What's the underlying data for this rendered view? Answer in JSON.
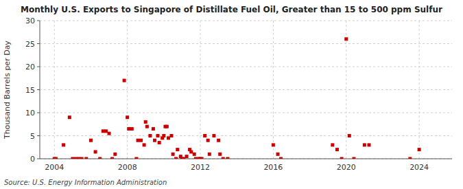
{
  "chart_data": {
    "type": "scatter",
    "title": "Monthly U.S. Exports to Singapore of Distillate Fuel Oil, Greater than 15 to 500 ppm Sulfur",
    "ylabel": "Thousand Barrels per Day",
    "source": "Source: U.S. Energy Information Administration",
    "color": "#cc0000",
    "marker": "square",
    "grid": true,
    "xlim": [
      2003.2,
      2025.8
    ],
    "xticks": [
      2004,
      2008,
      2012,
      2016,
      2020,
      2024
    ],
    "ylim": [
      0,
      30
    ],
    "yticks": [
      0,
      5,
      10,
      15,
      20,
      25,
      30
    ],
    "x": [
      2004.0,
      2004.08,
      2004.5,
      2004.83,
      2005.0,
      2005.17,
      2005.33,
      2005.5,
      2005.75,
      2006.0,
      2006.25,
      2006.5,
      2006.67,
      2006.83,
      2007.0,
      2007.17,
      2007.33,
      2007.83,
      2008.0,
      2008.08,
      2008.25,
      2008.5,
      2008.58,
      2008.75,
      2008.92,
      2009.0,
      2009.08,
      2009.25,
      2009.42,
      2009.5,
      2009.67,
      2009.75,
      2009.92,
      2010.0,
      2010.08,
      2010.17,
      2010.25,
      2010.42,
      2010.5,
      2010.67,
      2010.75,
      2010.92,
      2011.0,
      2011.08,
      2011.25,
      2011.42,
      2011.5,
      2011.67,
      2011.75,
      2011.92,
      2012.0,
      2012.08,
      2012.25,
      2012.42,
      2012.5,
      2012.75,
      2013.0,
      2013.08,
      2013.25,
      2013.5,
      2016.0,
      2016.25,
      2016.42,
      2019.25,
      2019.5,
      2019.75,
      2020.0,
      2020.17,
      2020.42,
      2021.0,
      2021.25,
      2023.5,
      2024.0
    ],
    "values": [
      0.0,
      0.0,
      3.0,
      9.0,
      0.0,
      0.0,
      0.0,
      0.0,
      0.0,
      4.0,
      1.5,
      0.0,
      6.0,
      6.0,
      5.5,
      0.0,
      1.0,
      17.0,
      9.0,
      6.5,
      6.5,
      0.0,
      4.0,
      4.0,
      3.0,
      8.0,
      7.0,
      5.0,
      6.5,
      4.0,
      5.0,
      3.5,
      4.5,
      5.0,
      7.0,
      7.0,
      4.5,
      5.0,
      1.0,
      0.0,
      2.0,
      0.5,
      0.0,
      0.0,
      0.5,
      2.0,
      1.5,
      1.0,
      0.0,
      0.0,
      0.0,
      0.0,
      5.0,
      4.0,
      1.0,
      5.0,
      4.0,
      1.0,
      0.0,
      0.0,
      3.0,
      1.0,
      0.0,
      3.0,
      2.0,
      0.0,
      26.0,
      5.0,
      0.0,
      3.0,
      3.0,
      0.0,
      2.0
    ]
  }
}
